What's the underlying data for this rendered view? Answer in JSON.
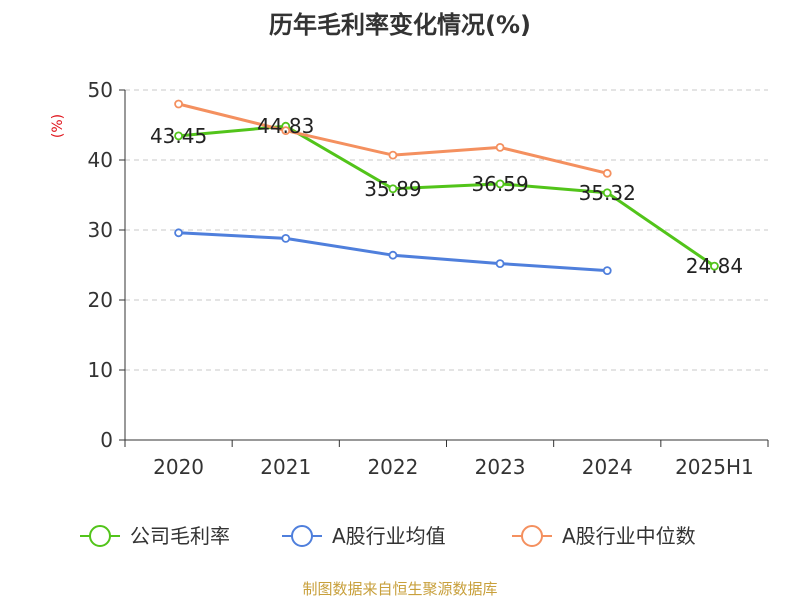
{
  "chart_data": {
    "type": "line",
    "title": "历年毛利率变化情况(%)",
    "ylabel": "(%)",
    "xlabel": "",
    "categories": [
      "2020",
      "2021",
      "2022",
      "2023",
      "2024",
      "2025H1"
    ],
    "ylim": [
      0,
      50
    ],
    "yticks": [
      0,
      10,
      20,
      30,
      40,
      50
    ],
    "grid": true,
    "legend_position": "bottom",
    "series": [
      {
        "name": "公司毛利率",
        "color": "#52c41a",
        "values": [
          43.45,
          44.83,
          35.89,
          36.59,
          35.32,
          24.84
        ],
        "labels": [
          "43.45",
          "44.83",
          "35.89",
          "36.59",
          "35.32",
          "24.84"
        ]
      },
      {
        "name": "A股行业均值",
        "color": "#4f7fdc",
        "values": [
          29.6,
          28.8,
          26.4,
          25.2,
          24.2,
          null
        ]
      },
      {
        "name": "A股行业中位数",
        "color": "#f4905f",
        "values": [
          48.0,
          44.2,
          40.7,
          41.8,
          38.1,
          null
        ]
      }
    ],
    "source": "制图数据来自恒生聚源数据库"
  }
}
